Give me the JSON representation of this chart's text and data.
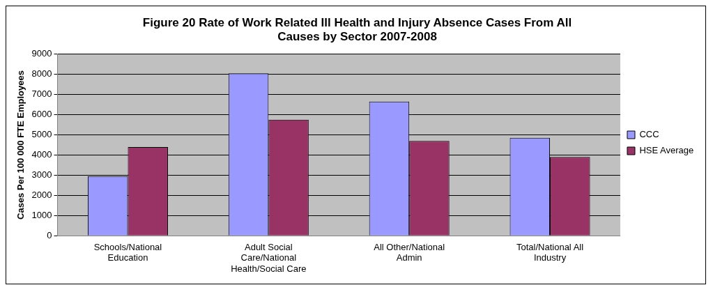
{
  "chart_data": {
    "type": "bar",
    "title": "Figure 20 Rate of Work Related Ill Health and Injury Absence Cases From All Causes by Sector 2007-2008",
    "ylabel": "Cases Per 100 000 FTE Employees",
    "categories": [
      "Schools/National Education",
      "Adult Social Care/National Health/Social Care",
      "All Other/National Admin",
      "Total/National All Industry"
    ],
    "series": [
      {
        "name": "CCC",
        "color": "#9999ff",
        "values": [
          2950,
          8050,
          6650,
          4850
        ]
      },
      {
        "name": "HSE Average",
        "color": "#993366",
        "values": [
          4400,
          5750,
          4700,
          3900
        ]
      }
    ],
    "ylim": [
      0,
      9000
    ],
    "yticks": [
      0,
      1000,
      2000,
      3000,
      4000,
      5000,
      6000,
      7000,
      8000,
      9000
    ],
    "grid": "y",
    "legend": "right"
  }
}
